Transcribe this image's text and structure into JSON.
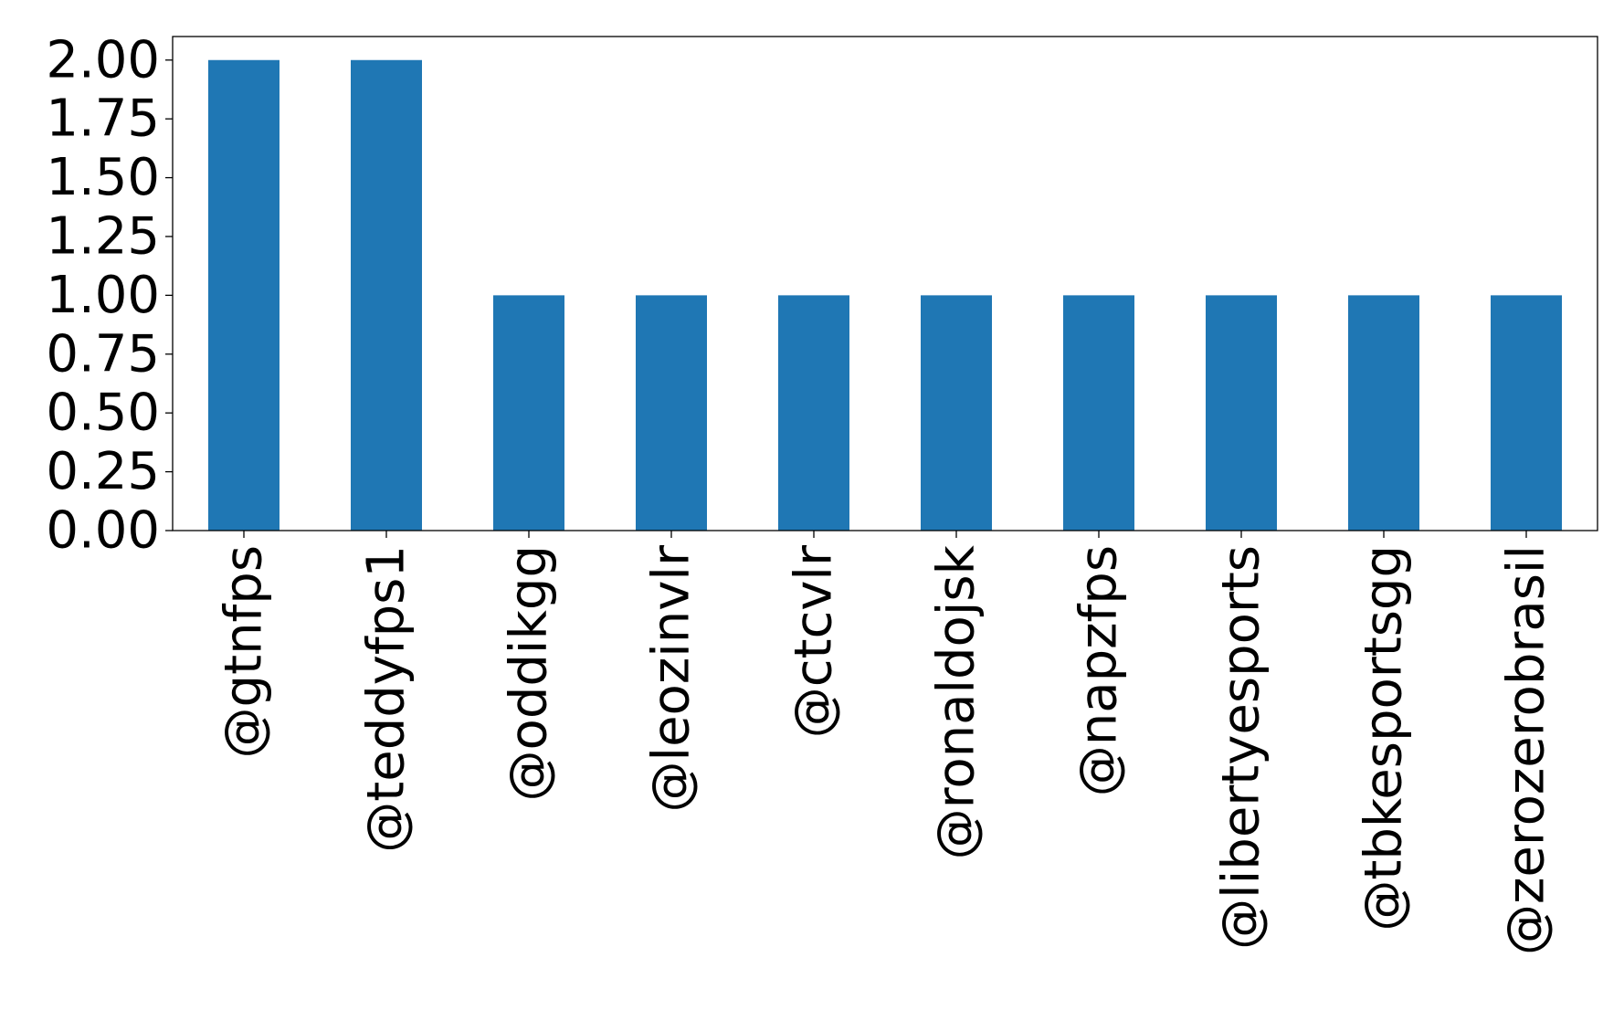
{
  "chart_data": {
    "type": "bar",
    "title": "",
    "xlabel": "",
    "ylabel": "",
    "categories": [
      "@gtnfps",
      "@teddyfps1",
      "@oddikgg",
      "@leozinvlr",
      "@ctcvlr",
      "@ronaldojsk",
      "@napzfps",
      "@libertyesports",
      "@tbkesportsgg",
      "@zerozerobrasil"
    ],
    "values": [
      2,
      2,
      1,
      1,
      1,
      1,
      1,
      1,
      1,
      1
    ],
    "ylim": [
      0,
      2.1
    ],
    "yticks": [
      "0.00",
      "0.25",
      "0.50",
      "0.75",
      "1.00",
      "1.25",
      "1.50",
      "1.75",
      "2.00"
    ],
    "grid": false,
    "bar_color": "#1f77b4"
  }
}
